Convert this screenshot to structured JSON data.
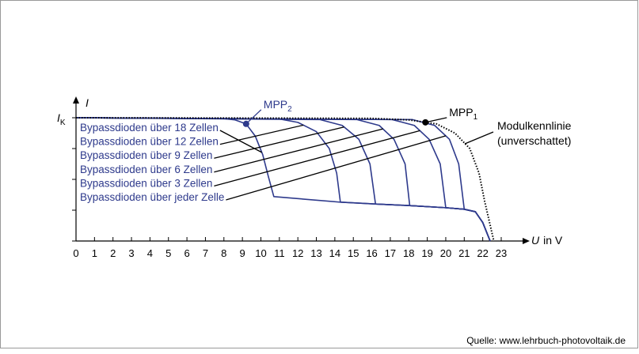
{
  "chart_data": {
    "type": "line",
    "xlabel_symbol": "U",
    "xlabel_unit": "in V",
    "ylabel": "I",
    "ik_label": {
      "text": "I",
      "subscript": "K",
      "value": 4
    },
    "xlim": [
      0,
      23
    ],
    "xticks": [
      0,
      1,
      2,
      3,
      4,
      5,
      6,
      7,
      8,
      9,
      10,
      11,
      12,
      13,
      14,
      15,
      16,
      17,
      18,
      19,
      20,
      21,
      22,
      23
    ],
    "ylim": [
      0,
      4
    ],
    "yticks": [
      0,
      1,
      2,
      3,
      4
    ],
    "series": [
      {
        "name": "Bypassdioden über 18 Zellen",
        "color": "#2e3a8c",
        "x": [
          0,
          8,
          8.6,
          9.2,
          9.7,
          10.1,
          10.4,
          10.7,
          14.3,
          16.2,
          18.05,
          20,
          21,
          21.6,
          22,
          22.4
        ],
        "values": [
          4,
          3.97,
          3.93,
          3.8,
          3.4,
          2.8,
          2.1,
          1.44,
          1.26,
          1.2,
          1.15,
          1.08,
          1.03,
          0.95,
          0.6,
          0
        ]
      },
      {
        "name": "Bypassdioden über 12 Zellen",
        "color": "#2e3a8c",
        "x": [
          0,
          11,
          12,
          13,
          13.7,
          14.1,
          14.3,
          16.2,
          18.05,
          20,
          21,
          21.6,
          22,
          22.4
        ],
        "values": [
          4,
          3.96,
          3.85,
          3.55,
          3.0,
          2.2,
          1.26,
          1.2,
          1.15,
          1.08,
          1.03,
          0.95,
          0.6,
          0
        ]
      },
      {
        "name": "Bypassdioden über 9 Zellen",
        "color": "#2e3a8c",
        "x": [
          0,
          13.2,
          14.4,
          15.3,
          15.9,
          16.2,
          18.05,
          20,
          21,
          21.6,
          22,
          22.4
        ],
        "values": [
          4,
          3.94,
          3.75,
          3.3,
          2.5,
          1.2,
          1.15,
          1.08,
          1.03,
          0.95,
          0.6,
          0
        ]
      },
      {
        "name": "Bypassdioden über 6 Zellen",
        "color": "#2e3a8c",
        "x": [
          0,
          15.2,
          16.4,
          17.2,
          17.8,
          18.05,
          20,
          21,
          21.6,
          22,
          22.4
        ],
        "values": [
          4,
          3.94,
          3.75,
          3.3,
          2.5,
          1.15,
          1.08,
          1.03,
          0.95,
          0.6,
          0
        ]
      },
      {
        "name": "Bypassdioden über 3 Zellen",
        "color": "#2e3a8c",
        "x": [
          0,
          17.1,
          18.3,
          19.1,
          19.7,
          20,
          21,
          21.6,
          22,
          22.4
        ],
        "values": [
          4,
          3.94,
          3.75,
          3.3,
          2.5,
          1.08,
          1.03,
          0.95,
          0.6,
          0
        ]
      },
      {
        "name": "Bypassdioden über jeder Zelle",
        "color": "#2e3a8c",
        "x": [
          0,
          18.2,
          19.4,
          20.2,
          20.7,
          21,
          21.6,
          22,
          22.4
        ],
        "values": [
          4,
          3.94,
          3.75,
          3.3,
          2.5,
          1.03,
          0.95,
          0.6,
          0
        ]
      },
      {
        "name": "Modulkennlinie (unverschattet)",
        "color": "#000000",
        "dash": "dotted",
        "x": [
          0,
          16,
          18,
          19.5,
          20.5,
          21.3,
          21.8,
          22.1,
          22.6
        ],
        "values": [
          4,
          3.98,
          3.93,
          3.8,
          3.5,
          3.0,
          2.2,
          1.3,
          0
        ]
      }
    ],
    "annotations": [
      {
        "label": "MPP",
        "subscript": "2",
        "x": 9.2,
        "y": 3.8,
        "color": "#2e3a8c"
      },
      {
        "label": "MPP",
        "subscript": "1",
        "x": 18.9,
        "y": 3.85,
        "color": "#000000"
      }
    ],
    "source": "Quelle: www.lehrbuch-photovoltaik.de"
  }
}
